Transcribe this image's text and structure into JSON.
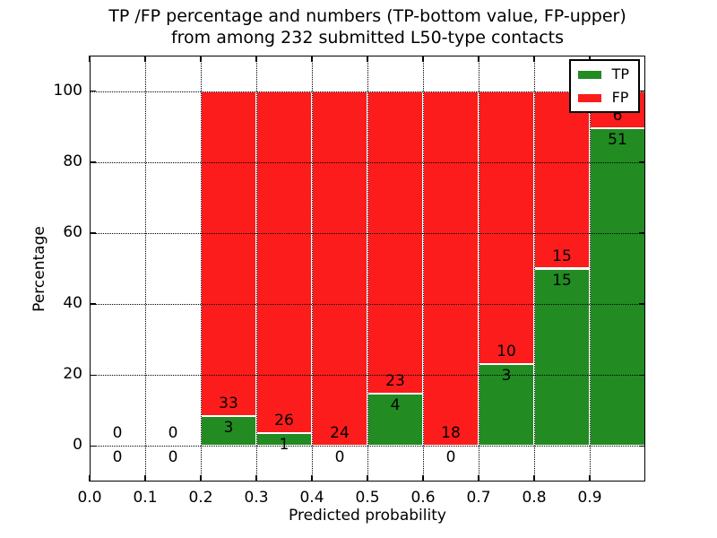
{
  "chart_data": {
    "type": "bar",
    "stacked": true,
    "normalized_to": 100,
    "title": "TP /FP percentage and numbers (TP-bottom value, FP-upper)\nfrom among 232 submitted L50-type contacts",
    "xlabel": "Predicted probability",
    "ylabel": "Percentage",
    "total_contacts": 232,
    "xlim": [
      0.0,
      1.0
    ],
    "ylim": [
      -10,
      110
    ],
    "bin_width": 0.1,
    "grid": true,
    "xticks": {
      "values": [
        0.0,
        0.1,
        0.2,
        0.3,
        0.4,
        0.5,
        0.6,
        0.7,
        0.8,
        0.9
      ],
      "labels": [
        "0.0",
        "0.1",
        "0.2",
        "0.3",
        "0.4",
        "0.5",
        "0.6",
        "0.7",
        "0.8",
        "0.9"
      ]
    },
    "yticks": {
      "values": [
        0,
        20,
        40,
        60,
        80,
        100
      ],
      "labels": [
        "0",
        "20",
        "40",
        "60",
        "80",
        "100"
      ]
    },
    "legend": {
      "position": "upper right",
      "items": [
        {
          "key": "tp",
          "label": "TP",
          "color": "#228b22"
        },
        {
          "key": "fp",
          "label": "FP",
          "color": "#fc1c1c"
        }
      ]
    },
    "bins": [
      {
        "x_start": 0.0,
        "tp_count": 0,
        "fp_count": 0,
        "tp_pct": 0,
        "fp_pct": 0
      },
      {
        "x_start": 0.1,
        "tp_count": 0,
        "fp_count": 0,
        "tp_pct": 0,
        "fp_pct": 0
      },
      {
        "x_start": 0.2,
        "tp_count": 3,
        "fp_count": 33,
        "tp_pct": 8.33,
        "fp_pct": 91.67
      },
      {
        "x_start": 0.3,
        "tp_count": 1,
        "fp_count": 26,
        "tp_pct": 3.7,
        "fp_pct": 96.3
      },
      {
        "x_start": 0.4,
        "tp_count": 0,
        "fp_count": 24,
        "tp_pct": 0,
        "fp_pct": 100
      },
      {
        "x_start": 0.5,
        "tp_count": 4,
        "fp_count": 23,
        "tp_pct": 14.81,
        "fp_pct": 85.19
      },
      {
        "x_start": 0.6,
        "tp_count": 0,
        "fp_count": 18,
        "tp_pct": 0,
        "fp_pct": 100
      },
      {
        "x_start": 0.7,
        "tp_count": 3,
        "fp_count": 10,
        "tp_pct": 23.08,
        "fp_pct": 76.92
      },
      {
        "x_start": 0.8,
        "tp_count": 15,
        "fp_count": 15,
        "tp_pct": 50,
        "fp_pct": 50
      },
      {
        "x_start": 0.9,
        "tp_count": 51,
        "fp_count": 6,
        "tp_pct": 89.47,
        "fp_pct": 10.53
      }
    ]
  }
}
